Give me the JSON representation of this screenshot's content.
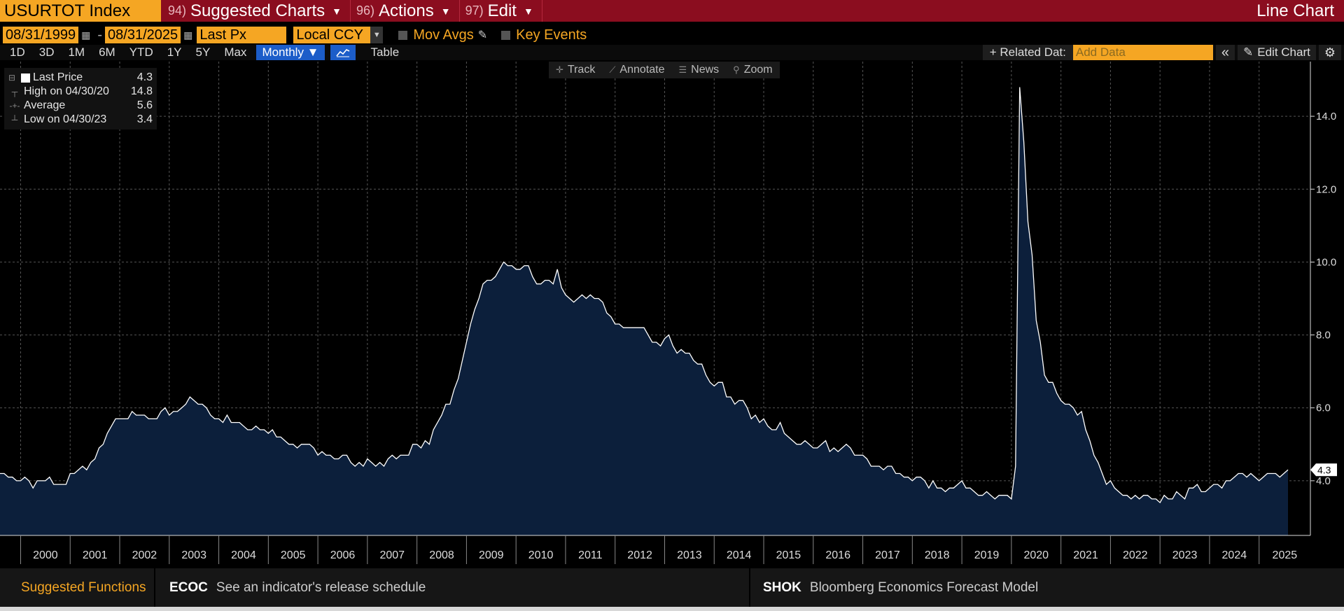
{
  "title_bar": {
    "ticker": "USURTOT Index",
    "menus": [
      {
        "num": "94)",
        "label": "Suggested Charts"
      },
      {
        "num": "96)",
        "label": "Actions"
      },
      {
        "num": "97)",
        "label": "Edit"
      }
    ],
    "chart_type": "Line Chart"
  },
  "controls": {
    "start_date": "08/31/1999",
    "end_date": "08/31/2025",
    "field": "Last Px",
    "currency": "Local CCY",
    "mov_avgs": "Mov Avgs",
    "key_events": "Key Events"
  },
  "periods": [
    "1D",
    "3D",
    "1M",
    "6M",
    "YTD",
    "1Y",
    "5Y",
    "Max"
  ],
  "frequency": "Monthly ▼",
  "table_label": "Table",
  "related_data": "+ Related Dat:",
  "add_data_placeholder": "Add Data",
  "collapse_label": "«",
  "edit_chart": "Edit Chart",
  "plot_tools": [
    "Track",
    "Annotate",
    "News",
    "Zoom"
  ],
  "legend": [
    {
      "label": "Last Price",
      "value": "4.3"
    },
    {
      "label": "High on 04/30/20",
      "value": "14.8"
    },
    {
      "label": "Average",
      "value": "5.6"
    },
    {
      "label": "Low on 04/30/23",
      "value": "3.4"
    }
  ],
  "footer": {
    "suggested": "Suggested Functions",
    "items": [
      {
        "code": "ECOC",
        "desc": "See an indicator's release schedule"
      },
      {
        "code": "SHOK",
        "desc": "Bloomberg Economics Forecast Model"
      }
    ]
  },
  "colors": {
    "line": "#ffffff",
    "area": "#0c1f3b",
    "accent": "#f5a623",
    "titlebar": "#8b0d1f"
  },
  "chart_data": {
    "type": "area",
    "x_range": [
      "1999-08",
      "2025-08"
    ],
    "ylim": [
      2.5,
      15.5
    ],
    "y_ticks": [
      4.0,
      6.0,
      8.0,
      10.0,
      12.0,
      14.0
    ],
    "x_ticks": [
      "2000",
      "2001",
      "2002",
      "2003",
      "2004",
      "2005",
      "2006",
      "2007",
      "2008",
      "2009",
      "2010",
      "2011",
      "2012",
      "2013",
      "2014",
      "2015",
      "2016",
      "2017",
      "2018",
      "2019",
      "2020",
      "2021",
      "2022",
      "2023",
      "2024",
      "2025"
    ],
    "last_value_label": "4.3",
    "grid": true,
    "series": [
      {
        "name": "Last Price",
        "start": "1999-08",
        "frequency": "monthly",
        "values": [
          4.2,
          4.2,
          4.1,
          4.1,
          4.0,
          4.0,
          4.1,
          4.0,
          3.8,
          4.0,
          4.0,
          4.0,
          4.1,
          3.9,
          3.9,
          3.9,
          3.9,
          4.2,
          4.2,
          4.3,
          4.4,
          4.3,
          4.5,
          4.6,
          4.9,
          5.0,
          5.3,
          5.5,
          5.7,
          5.7,
          5.7,
          5.7,
          5.9,
          5.8,
          5.8,
          5.8,
          5.7,
          5.7,
          5.7,
          5.9,
          6.0,
          5.8,
          5.9,
          5.9,
          6.0,
          6.1,
          6.3,
          6.2,
          6.1,
          6.1,
          6.0,
          5.8,
          5.7,
          5.7,
          5.6,
          5.8,
          5.6,
          5.6,
          5.6,
          5.5,
          5.4,
          5.4,
          5.5,
          5.4,
          5.4,
          5.3,
          5.4,
          5.2,
          5.2,
          5.1,
          5.0,
          5.0,
          4.9,
          5.0,
          5.0,
          5.0,
          4.9,
          4.7,
          4.8,
          4.7,
          4.7,
          4.6,
          4.6,
          4.7,
          4.7,
          4.5,
          4.4,
          4.5,
          4.4,
          4.6,
          4.5,
          4.4,
          4.5,
          4.4,
          4.6,
          4.7,
          4.6,
          4.7,
          4.7,
          4.7,
          5.0,
          5.0,
          4.9,
          5.1,
          5.0,
          5.4,
          5.6,
          5.8,
          6.1,
          6.1,
          6.5,
          6.8,
          7.3,
          7.8,
          8.3,
          8.7,
          9.0,
          9.4,
          9.5,
          9.5,
          9.6,
          9.8,
          10.0,
          9.9,
          9.9,
          9.8,
          9.8,
          9.9,
          9.9,
          9.6,
          9.4,
          9.4,
          9.5,
          9.5,
          9.4,
          9.8,
          9.3,
          9.1,
          9.0,
          8.9,
          9.0,
          9.1,
          9.0,
          9.1,
          9.0,
          9.0,
          8.9,
          8.6,
          8.5,
          8.3,
          8.3,
          8.2,
          8.2,
          8.2,
          8.2,
          8.2,
          8.2,
          8.0,
          7.8,
          7.8,
          7.7,
          7.9,
          8.0,
          7.7,
          7.5,
          7.6,
          7.5,
          7.5,
          7.3,
          7.2,
          7.2,
          6.9,
          6.7,
          6.6,
          6.7,
          6.7,
          6.3,
          6.3,
          6.1,
          6.2,
          6.2,
          6.0,
          5.7,
          5.8,
          5.6,
          5.7,
          5.5,
          5.4,
          5.4,
          5.6,
          5.3,
          5.2,
          5.1,
          5.0,
          5.0,
          5.1,
          5.0,
          4.9,
          4.9,
          5.0,
          5.1,
          4.8,
          4.9,
          4.8,
          4.9,
          5.0,
          4.9,
          4.7,
          4.7,
          4.7,
          4.6,
          4.4,
          4.4,
          4.4,
          4.3,
          4.4,
          4.4,
          4.2,
          4.2,
          4.1,
          4.1,
          4.0,
          4.1,
          4.1,
          4.0,
          3.8,
          4.0,
          3.8,
          3.8,
          3.7,
          3.8,
          3.8,
          3.9,
          4.0,
          3.8,
          3.8,
          3.7,
          3.6,
          3.6,
          3.7,
          3.6,
          3.5,
          3.6,
          3.6,
          3.6,
          3.5,
          4.4,
          14.8,
          13.3,
          11.1,
          10.2,
          8.4,
          7.8,
          6.9,
          6.7,
          6.7,
          6.4,
          6.2,
          6.1,
          6.1,
          6.0,
          5.8,
          5.9,
          5.4,
          5.1,
          4.7,
          4.5,
          4.2,
          3.9,
          4.0,
          3.8,
          3.7,
          3.6,
          3.6,
          3.5,
          3.6,
          3.5,
          3.6,
          3.6,
          3.5,
          3.5,
          3.4,
          3.6,
          3.5,
          3.5,
          3.7,
          3.6,
          3.5,
          3.8,
          3.8,
          3.9,
          3.7,
          3.7,
          3.8,
          3.9,
          3.9,
          3.8,
          4.0,
          4.0,
          4.1,
          4.2,
          4.2,
          4.1,
          4.2,
          4.1,
          4.0,
          4.1,
          4.2,
          4.2,
          4.2,
          4.1,
          4.2,
          4.3
        ]
      }
    ]
  }
}
